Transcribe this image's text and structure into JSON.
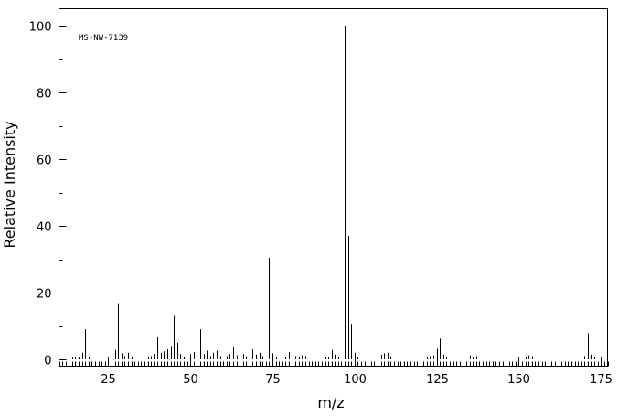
{
  "spectrum_id": "MS-NW-7139",
  "chart_data": {
    "type": "bar",
    "xlabel": "m/z",
    "ylabel": "Relative Intensity",
    "xlim": [
      10,
      177
    ],
    "ylim": [
      0,
      100
    ],
    "x_ticks": [
      25,
      50,
      75,
      100,
      125,
      150,
      175
    ],
    "y_ticks": [
      0,
      20,
      40,
      60,
      80,
      100
    ],
    "peaks": [
      {
        "mz": 14,
        "intensity": 0.5
      },
      {
        "mz": 15,
        "intensity": 0.8
      },
      {
        "mz": 16,
        "intensity": 0.6
      },
      {
        "mz": 17,
        "intensity": 2.0
      },
      {
        "mz": 18,
        "intensity": 9.0
      },
      {
        "mz": 19,
        "intensity": 0.6
      },
      {
        "mz": 26,
        "intensity": 0.8
      },
      {
        "mz": 27,
        "intensity": 2.8
      },
      {
        "mz": 28,
        "intensity": 16.8
      },
      {
        "mz": 29,
        "intensity": 1.8
      },
      {
        "mz": 30,
        "intensity": 1.0
      },
      {
        "mz": 31,
        "intensity": 2.0
      },
      {
        "mz": 32,
        "intensity": 0.6
      },
      {
        "mz": 37,
        "intensity": 0.6
      },
      {
        "mz": 38,
        "intensity": 1.0
      },
      {
        "mz": 39,
        "intensity": 1.6
      },
      {
        "mz": 40,
        "intensity": 6.6
      },
      {
        "mz": 41,
        "intensity": 2.0
      },
      {
        "mz": 42,
        "intensity": 2.4
      },
      {
        "mz": 43,
        "intensity": 3.0
      },
      {
        "mz": 44,
        "intensity": 4.0
      },
      {
        "mz": 45,
        "intensity": 13.0
      },
      {
        "mz": 46,
        "intensity": 5.0
      },
      {
        "mz": 47,
        "intensity": 1.6
      },
      {
        "mz": 48,
        "intensity": 0.6
      },
      {
        "mz": 50,
        "intensity": 1.6
      },
      {
        "mz": 51,
        "intensity": 2.2
      },
      {
        "mz": 52,
        "intensity": 1.0
      },
      {
        "mz": 53,
        "intensity": 9.0
      },
      {
        "mz": 54,
        "intensity": 1.6
      },
      {
        "mz": 55,
        "intensity": 2.6
      },
      {
        "mz": 56,
        "intensity": 1.0
      },
      {
        "mz": 57,
        "intensity": 2.0
      },
      {
        "mz": 58,
        "intensity": 2.6
      },
      {
        "mz": 59,
        "intensity": 1.0
      },
      {
        "mz": 61,
        "intensity": 1.0
      },
      {
        "mz": 62,
        "intensity": 1.6
      },
      {
        "mz": 63,
        "intensity": 3.6
      },
      {
        "mz": 64,
        "intensity": 1.2
      },
      {
        "mz": 65,
        "intensity": 5.6
      },
      {
        "mz": 66,
        "intensity": 1.6
      },
      {
        "mz": 67,
        "intensity": 1.0
      },
      {
        "mz": 68,
        "intensity": 1.2
      },
      {
        "mz": 69,
        "intensity": 3.0
      },
      {
        "mz": 70,
        "intensity": 1.4
      },
      {
        "mz": 71,
        "intensity": 2.0
      },
      {
        "mz": 72,
        "intensity": 1.0
      },
      {
        "mz": 74,
        "intensity": 30.4
      },
      {
        "mz": 75,
        "intensity": 1.8
      },
      {
        "mz": 76,
        "intensity": 0.8
      },
      {
        "mz": 79,
        "intensity": 0.6
      },
      {
        "mz": 80,
        "intensity": 2.2
      },
      {
        "mz": 81,
        "intensity": 1.0
      },
      {
        "mz": 82,
        "intensity": 1.0
      },
      {
        "mz": 83,
        "intensity": 0.8
      },
      {
        "mz": 84,
        "intensity": 1.2
      },
      {
        "mz": 85,
        "intensity": 1.0
      },
      {
        "mz": 91,
        "intensity": 0.6
      },
      {
        "mz": 92,
        "intensity": 0.8
      },
      {
        "mz": 93,
        "intensity": 2.8
      },
      {
        "mz": 94,
        "intensity": 1.4
      },
      {
        "mz": 95,
        "intensity": 0.8
      },
      {
        "mz": 97,
        "intensity": 100.0
      },
      {
        "mz": 98,
        "intensity": 37.0
      },
      {
        "mz": 99,
        "intensity": 10.6
      },
      {
        "mz": 100,
        "intensity": 2.0
      },
      {
        "mz": 101,
        "intensity": 0.8
      },
      {
        "mz": 107,
        "intensity": 0.8
      },
      {
        "mz": 108,
        "intensity": 1.4
      },
      {
        "mz": 109,
        "intensity": 1.8
      },
      {
        "mz": 110,
        "intensity": 2.0
      },
      {
        "mz": 111,
        "intensity": 0.8
      },
      {
        "mz": 122,
        "intensity": 0.8
      },
      {
        "mz": 123,
        "intensity": 1.0
      },
      {
        "mz": 124,
        "intensity": 1.2
      },
      {
        "mz": 125,
        "intensity": 3.2
      },
      {
        "mz": 126,
        "intensity": 6.2
      },
      {
        "mz": 127,
        "intensity": 1.4
      },
      {
        "mz": 128,
        "intensity": 0.8
      },
      {
        "mz": 135,
        "intensity": 1.2
      },
      {
        "mz": 136,
        "intensity": 0.8
      },
      {
        "mz": 137,
        "intensity": 1.0
      },
      {
        "mz": 152,
        "intensity": 0.8
      },
      {
        "mz": 153,
        "intensity": 1.2
      },
      {
        "mz": 154,
        "intensity": 1.0
      },
      {
        "mz": 170,
        "intensity": 1.0
      },
      {
        "mz": 171,
        "intensity": 7.8
      },
      {
        "mz": 172,
        "intensity": 1.4
      },
      {
        "mz": 173,
        "intensity": 0.8
      }
    ]
  }
}
